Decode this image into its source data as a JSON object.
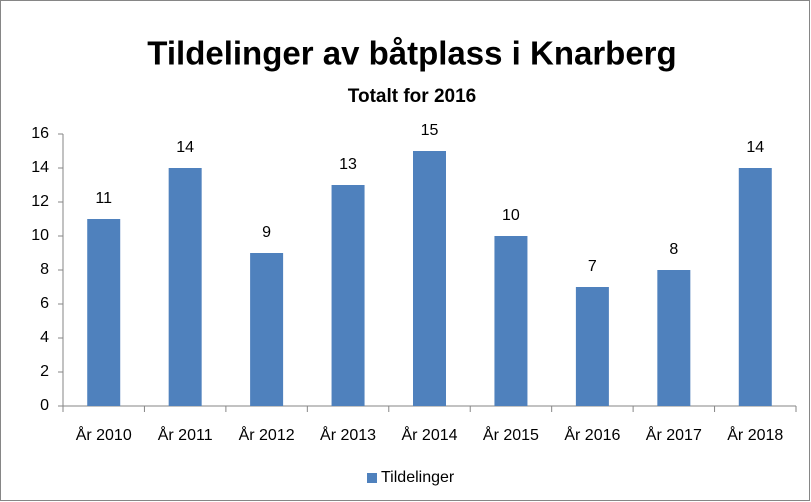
{
  "chart_data": {
    "type": "bar",
    "title": "Tildelinger av båtplass i Knarberg",
    "subtitle": "Totalt for 2016",
    "categories": [
      "År 2010",
      "År 2011",
      "År 2012",
      "År 2013",
      "År 2014",
      "År 2015",
      "År 2016",
      "År 2017",
      "År 2018"
    ],
    "series": [
      {
        "name": "Tildelinger",
        "color": "#4f81bd",
        "values": [
          11,
          14,
          9,
          13,
          15,
          10,
          7,
          8,
          14
        ]
      }
    ],
    "ylim": [
      0,
      16
    ],
    "yticks": [
      0,
      2,
      4,
      6,
      8,
      10,
      12,
      14,
      16
    ],
    "grid": false,
    "data_labels": true,
    "legend": "bottom"
  }
}
